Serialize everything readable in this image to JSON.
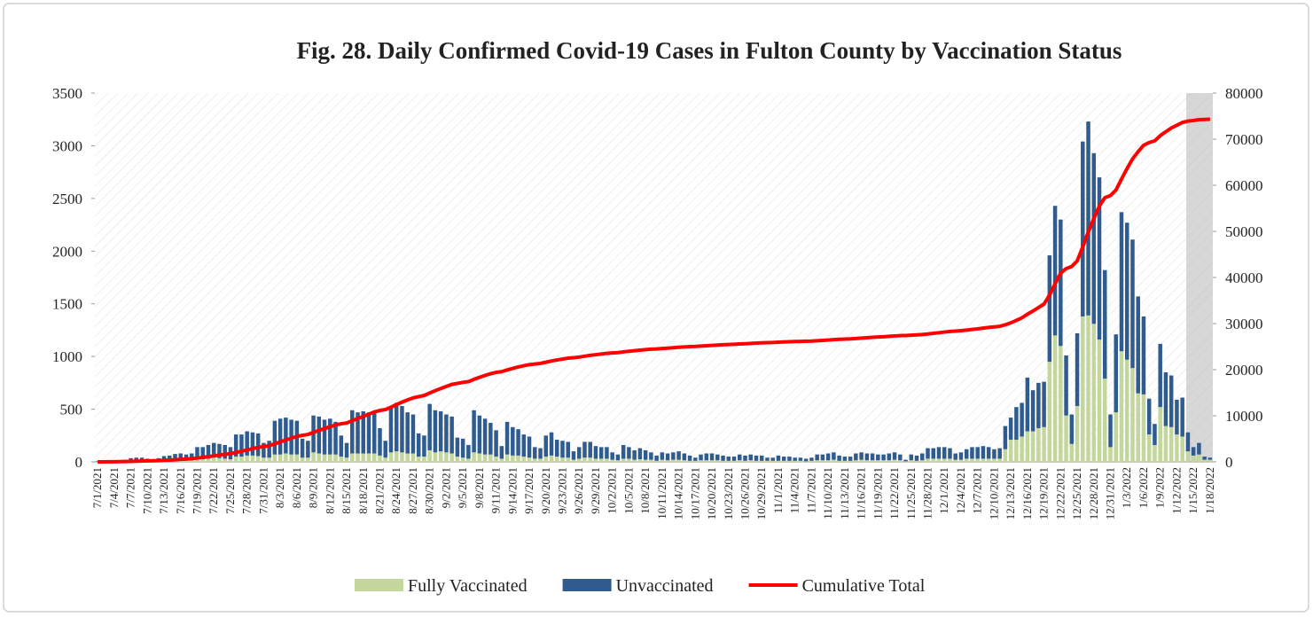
{
  "chart_data": {
    "type": "bar",
    "title": "Fig. 28. Daily Confirmed Covid-19 Cases in Fulton County by Vaccination Status",
    "stacked": true,
    "categories": [
      "7/1/2021",
      null,
      null,
      "7/4/2021",
      null,
      null,
      "7/7/2021",
      null,
      null,
      "7/10/2021",
      null,
      null,
      "7/13/2021",
      null,
      null,
      "7/16/2021",
      null,
      null,
      "7/19/2021",
      null,
      null,
      "7/22/2021",
      null,
      null,
      "7/25/2021",
      null,
      null,
      "7/28/2021",
      null,
      null,
      "7/31/2021",
      null,
      null,
      "8/3/2021",
      null,
      null,
      "8/6/2021",
      null,
      null,
      "8/9/2021",
      null,
      null,
      "8/12/2021",
      null,
      null,
      "8/15/2021",
      null,
      null,
      "8/18/2021",
      null,
      null,
      "8/21/2021",
      null,
      null,
      "8/24/2021",
      null,
      null,
      "8/27/2021",
      null,
      null,
      "8/30/2021",
      null,
      null,
      "9/2/2021",
      null,
      null,
      "9/5/2021",
      null,
      null,
      "9/8/2021",
      null,
      null,
      "9/11/2021",
      null,
      null,
      "9/14/2021",
      null,
      null,
      "9/17/2021",
      null,
      null,
      "9/20/2021",
      null,
      null,
      "9/23/2021",
      null,
      null,
      "9/26/2021",
      null,
      null,
      "9/29/2021",
      null,
      null,
      "10/2/2021",
      null,
      null,
      "10/5/2021",
      null,
      null,
      "10/8/2021",
      null,
      null,
      "10/11/2021",
      null,
      null,
      "10/14/2021",
      null,
      null,
      "10/17/2021",
      null,
      null,
      "10/20/2021",
      null,
      null,
      "10/23/2021",
      null,
      null,
      "10/26/2021",
      null,
      null,
      "10/29/2021",
      null,
      null,
      "11/1/2021",
      null,
      null,
      "11/4/2021",
      null,
      null,
      "11/7/2021",
      null,
      null,
      "11/10/2021",
      null,
      null,
      "11/13/2021",
      null,
      null,
      "11/16/2021",
      null,
      null,
      "11/19/2021",
      null,
      null,
      "11/22/2021",
      null,
      null,
      "11/25/2021",
      null,
      null,
      "11/28/2021",
      null,
      null,
      "12/1/2021",
      null,
      null,
      "12/4/2021",
      null,
      null,
      "12/7/2021",
      null,
      null,
      "12/10/2021",
      null,
      null,
      "12/13/2021",
      null,
      null,
      "12/16/2021",
      null,
      null,
      "12/19/2021",
      null,
      null,
      "12/22/2021",
      null,
      null,
      "12/25/2021",
      null,
      null,
      "12/28/2021",
      null,
      null,
      "12/31/2021",
      null,
      null,
      "1/3/2022",
      null,
      null,
      "1/6/2022",
      null,
      null,
      "1/9/2022",
      null,
      null,
      "1/12/2022",
      null,
      null,
      "1/15/2022",
      null,
      null,
      "1/18/2022"
    ],
    "series": [
      {
        "name": "Fully Vaccinated",
        "color": "#c3d69b",
        "values": [
          0,
          0,
          0,
          0,
          5,
          5,
          5,
          10,
          10,
          5,
          5,
          5,
          10,
          10,
          15,
          15,
          15,
          15,
          25,
          25,
          30,
          40,
          35,
          30,
          25,
          50,
          50,
          60,
          60,
          55,
          40,
          40,
          70,
          70,
          80,
          70,
          70,
          40,
          40,
          90,
          80,
          70,
          70,
          70,
          50,
          40,
          80,
          80,
          80,
          80,
          80,
          60,
          40,
          90,
          100,
          90,
          80,
          80,
          50,
          50,
          110,
          90,
          100,
          90,
          80,
          50,
          40,
          30,
          90,
          80,
          70,
          70,
          50,
          30,
          70,
          60,
          60,
          50,
          40,
          30,
          30,
          50,
          60,
          50,
          40,
          40,
          20,
          30,
          40,
          40,
          30,
          30,
          30,
          20,
          15,
          30,
          30,
          20,
          25,
          20,
          20,
          10,
          20,
          15,
          20,
          20,
          15,
          10,
          10,
          15,
          15,
          15,
          15,
          10,
          10,
          10,
          15,
          10,
          15,
          10,
          10,
          10,
          10,
          10,
          10,
          10,
          10,
          10,
          5,
          10,
          15,
          15,
          15,
          20,
          10,
          10,
          10,
          15,
          20,
          15,
          15,
          15,
          15,
          15,
          20,
          15,
          5,
          15,
          10,
          15,
          30,
          30,
          30,
          30,
          30,
          20,
          20,
          30,
          30,
          30,
          30,
          30,
          30,
          30,
          120,
          210,
          210,
          240,
          290,
          290,
          320,
          330,
          950,
          1200,
          1100,
          440,
          170,
          530,
          1380,
          1390,
          1310,
          1160,
          790,
          140,
          470,
          1050,
          970,
          890,
          650,
          640,
          260,
          160,
          520,
          340,
          330,
          260,
          240,
          100,
          60,
          70,
          20,
          20
        ]
      },
      {
        "name": "Unvaccinated",
        "color": "#2f5b8f",
        "values": [
          5,
          5,
          10,
          10,
          10,
          15,
          30,
          30,
          30,
          25,
          20,
          30,
          45,
          50,
          60,
          65,
          55,
          65,
          115,
          115,
          130,
          140,
          135,
          130,
          115,
          210,
          210,
          230,
          220,
          215,
          140,
          160,
          320,
          340,
          340,
          330,
          320,
          180,
          160,
          350,
          350,
          330,
          340,
          310,
          200,
          140,
          410,
          390,
          400,
          390,
          400,
          260,
          160,
          430,
          460,
          440,
          390,
          370,
          220,
          200,
          440,
          400,
          380,
          360,
          350,
          180,
          180,
          130,
          400,
          360,
          340,
          300,
          250,
          120,
          310,
          270,
          250,
          210,
          200,
          110,
          100,
          200,
          220,
          160,
          160,
          150,
          80,
          110,
          150,
          150,
          120,
          110,
          110,
          70,
          55,
          130,
          110,
          90,
          105,
          90,
          70,
          50,
          70,
          65,
          70,
          80,
          65,
          50,
          30,
          55,
          65,
          65,
          55,
          50,
          40,
          40,
          55,
          50,
          55,
          50,
          50,
          30,
          30,
          50,
          40,
          40,
          30,
          30,
          25,
          30,
          55,
          55,
          65,
          70,
          50,
          40,
          40,
          65,
          70,
          65,
          65,
          55,
          55,
          65,
          70,
          55,
          15,
          55,
          50,
          65,
          100,
          100,
          110,
          110,
          100,
          60,
          70,
          90,
          110,
          110,
          120,
          110,
          90,
          100,
          220,
          210,
          310,
          320,
          510,
          390,
          430,
          430,
          1010,
          1230,
          1200,
          570,
          280,
          690,
          1660,
          1840,
          1620,
          1540,
          1030,
          310,
          740,
          1320,
          1300,
          1220,
          920,
          740,
          340,
          200,
          600,
          510,
          490,
          330,
          370,
          180,
          80,
          110,
          30,
          20
        ]
      },
      {
        "name": "Cumulative Total",
        "color": "#ff0000",
        "type": "line",
        "axis": "y2",
        "values": [
          5,
          10,
          20,
          30,
          45,
          65,
          100,
          140,
          180,
          210,
          235,
          270,
          325,
          385,
          460,
          540,
          610,
          690,
          830,
          970,
          1130,
          1310,
          1480,
          1640,
          1780,
          2040,
          2300,
          2590,
          2870,
          3140,
          3320,
          3520,
          3910,
          4320,
          4740,
          5140,
          5530,
          5750,
          5950,
          6390,
          6820,
          7220,
          7630,
          8010,
          8260,
          8440,
          8930,
          9400,
          9880,
          10350,
          10830,
          11150,
          11350,
          11870,
          12430,
          12960,
          13430,
          13880,
          14150,
          14400,
          14950,
          15440,
          15920,
          16370,
          16800,
          17030,
          17250,
          17410,
          17900,
          18340,
          18750,
          19120,
          19420,
          19570,
          19950,
          20280,
          20590,
          20850,
          21090,
          21230,
          21360,
          21610,
          21890,
          22100,
          22300,
          22490,
          22590,
          22730,
          22920,
          23110,
          23260,
          23400,
          23540,
          23630,
          23700,
          23860,
          24000,
          24110,
          24240,
          24350,
          24440,
          24500,
          24590,
          24670,
          24760,
          24860,
          24940,
          25000,
          25040,
          25110,
          25190,
          25270,
          25340,
          25400,
          25450,
          25500,
          25570,
          25630,
          25700,
          25760,
          25820,
          25860,
          25900,
          25960,
          26010,
          26060,
          26100,
          26140,
          26170,
          26210,
          26280,
          26350,
          26430,
          26520,
          26580,
          26630,
          26680,
          26760,
          26850,
          26930,
          27010,
          27080,
          27150,
          27230,
          27320,
          27390,
          27410,
          27480,
          27540,
          27620,
          27750,
          27880,
          28020,
          28160,
          28290,
          28370,
          28460,
          28580,
          28720,
          28860,
          29010,
          29150,
          29270,
          29400,
          29740,
          30160,
          30680,
          31240,
          32040,
          32720,
          33470,
          34230,
          36190,
          38620,
          40920,
          41930,
          42380,
          43600,
          46640,
          49870,
          52800,
          55500,
          57320,
          57770,
          58980,
          61350,
          63620,
          65730,
          67300,
          68680,
          69280,
          69640,
          70760,
          71610,
          72430,
          73020,
          73630,
          73910,
          74050,
          74230,
          74280,
          74320
        ]
      }
    ],
    "ylim": [
      0,
      3500
    ],
    "yticks": [
      0,
      500,
      1000,
      1500,
      2000,
      2500,
      3000,
      3500
    ],
    "y2lim": [
      0,
      80000
    ],
    "y2ticks": [
      0,
      10000,
      20000,
      30000,
      40000,
      50000,
      60000,
      70000,
      80000
    ],
    "legend": "bottom"
  }
}
